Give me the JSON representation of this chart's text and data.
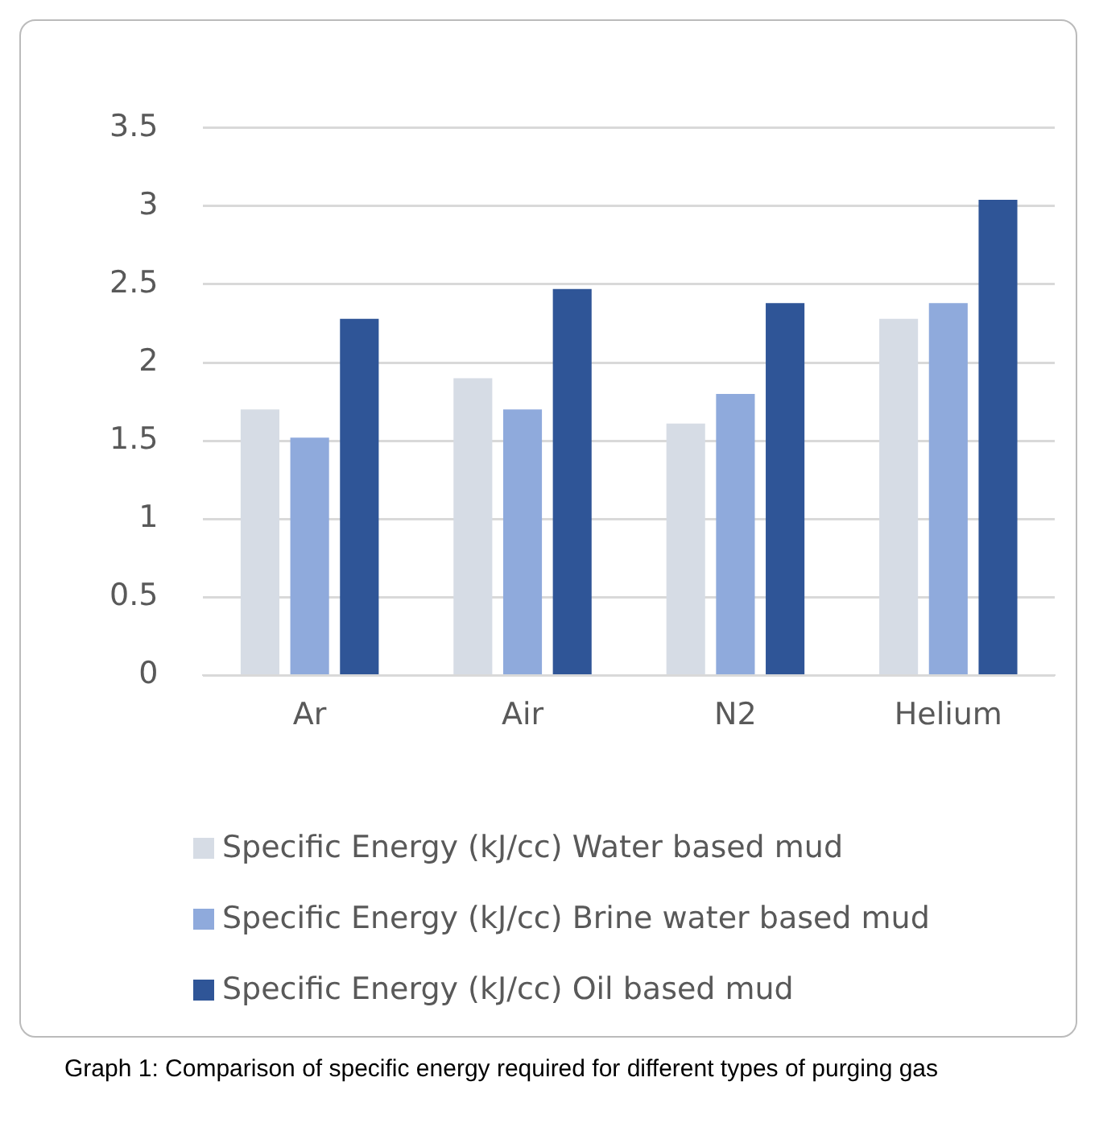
{
  "chart_data": {
    "type": "bar",
    "categories": [
      "Ar",
      "Air",
      "N2",
      "Helium"
    ],
    "series": [
      {
        "name": "Specific Energy (kJ/cc) Water based mud",
        "color": "#d6dce5",
        "values": [
          1.7,
          1.9,
          1.61,
          2.28
        ]
      },
      {
        "name": "Specific Energy (kJ/cc) Brine water based mud",
        "color": "#8faadc",
        "values": [
          1.52,
          1.7,
          1.8,
          2.38
        ]
      },
      {
        "name": "Specific Energy (kJ/cc) Oil based mud",
        "color": "#2f5597",
        "values": [
          2.28,
          2.47,
          2.38,
          3.04
        ]
      }
    ],
    "ylim": [
      0,
      3.5
    ],
    "yticks": [
      0,
      0.5,
      1,
      1.5,
      2,
      2.5,
      3,
      3.5
    ],
    "grid": "y",
    "legend": "bottom",
    "annotations": [
      "Graph 1: Comparison of specific energy required for different types of purging gas"
    ]
  }
}
